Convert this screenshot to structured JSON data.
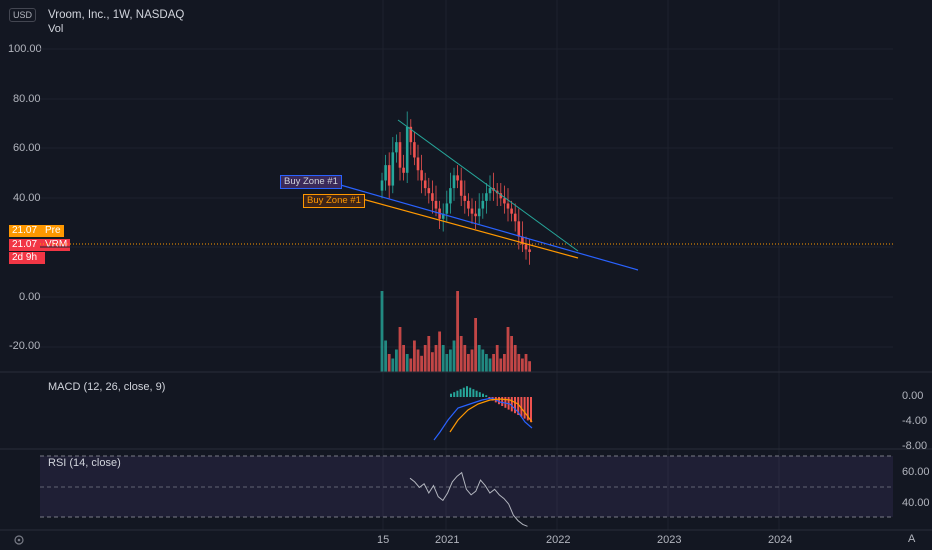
{
  "header": {
    "currency_button": "USD",
    "symbol_title": "Vroom, Inc., 1W, NASDAQ",
    "volume_label": "Vol"
  },
  "price_axis": {
    "ticks": [
      "100.00",
      "80.00",
      "60.00",
      "40.00",
      "0.00",
      "-20.00"
    ]
  },
  "price_tags": [
    {
      "value": "21.07",
      "label": "Pre",
      "color": "#ff9800"
    },
    {
      "value": "21.07",
      "label": "VRM",
      "color": "#f23645"
    },
    {
      "value": "2d 9h",
      "label": "",
      "color": "#f23645"
    }
  ],
  "annotations": [
    {
      "text": "Buy Zone #1",
      "style": "blue"
    },
    {
      "text": "Buy Zone #1",
      "style": "orange"
    }
  ],
  "macd": {
    "title": "MACD (12, 26, close, 9)",
    "ticks": [
      "0.00",
      "-4.00",
      "-8.00"
    ]
  },
  "rsi": {
    "title": "RSI (14, close)",
    "ticks": [
      "60.00",
      "40.00"
    ]
  },
  "time_axis": {
    "ticks": [
      "15",
      "2021",
      "2022",
      "2023",
      "2024"
    ]
  },
  "footer": {
    "left_icon": "settings",
    "right_button": "A"
  },
  "chart_data": {
    "type": "candlestick",
    "price_range": [
      -26,
      104
    ],
    "series": [
      {
        "name": "Vroom, Inc.",
        "close": [
          49,
          55,
          47,
          60,
          64,
          54,
          52,
          70,
          64,
          58,
          53,
          49,
          46,
          44,
          41,
          38,
          34,
          36,
          40,
          46,
          51,
          49,
          43,
          41,
          38,
          36,
          35,
          38,
          41,
          44,
          46,
          45,
          44,
          42,
          40,
          38,
          36,
          33,
          27,
          24,
          22,
          21
        ],
        "last_price": 21.07
      }
    ],
    "volume_relative": [
      0.9,
      0.35,
      0.2,
      0.15,
      0.25,
      0.5,
      0.3,
      0.2,
      0.15,
      0.35,
      0.25,
      0.18,
      0.3,
      0.4,
      0.22,
      0.3,
      0.45,
      0.3,
      0.2,
      0.25,
      0.35,
      0.9,
      0.4,
      0.3,
      0.2,
      0.25,
      0.6,
      0.3,
      0.25,
      0.2,
      0.15,
      0.2,
      0.3,
      0.15,
      0.2,
      0.5,
      0.4,
      0.3,
      0.2,
      0.15,
      0.2,
      0.12
    ],
    "macd_range": [
      -10,
      2
    ],
    "rsi_range": [
      30,
      70
    ],
    "rsi": [
      58,
      56,
      53,
      55,
      50,
      54,
      48,
      46,
      50,
      56,
      59,
      61,
      52,
      49,
      51,
      57,
      54,
      50,
      52,
      49,
      47,
      44,
      38,
      35,
      33,
      32
    ],
    "trendlines": [
      {
        "name": "resistance",
        "color": "#26a69a"
      },
      {
        "name": "support",
        "color": "#2962ff"
      },
      {
        "name": "buy zone",
        "color": "#ff9800"
      }
    ]
  }
}
